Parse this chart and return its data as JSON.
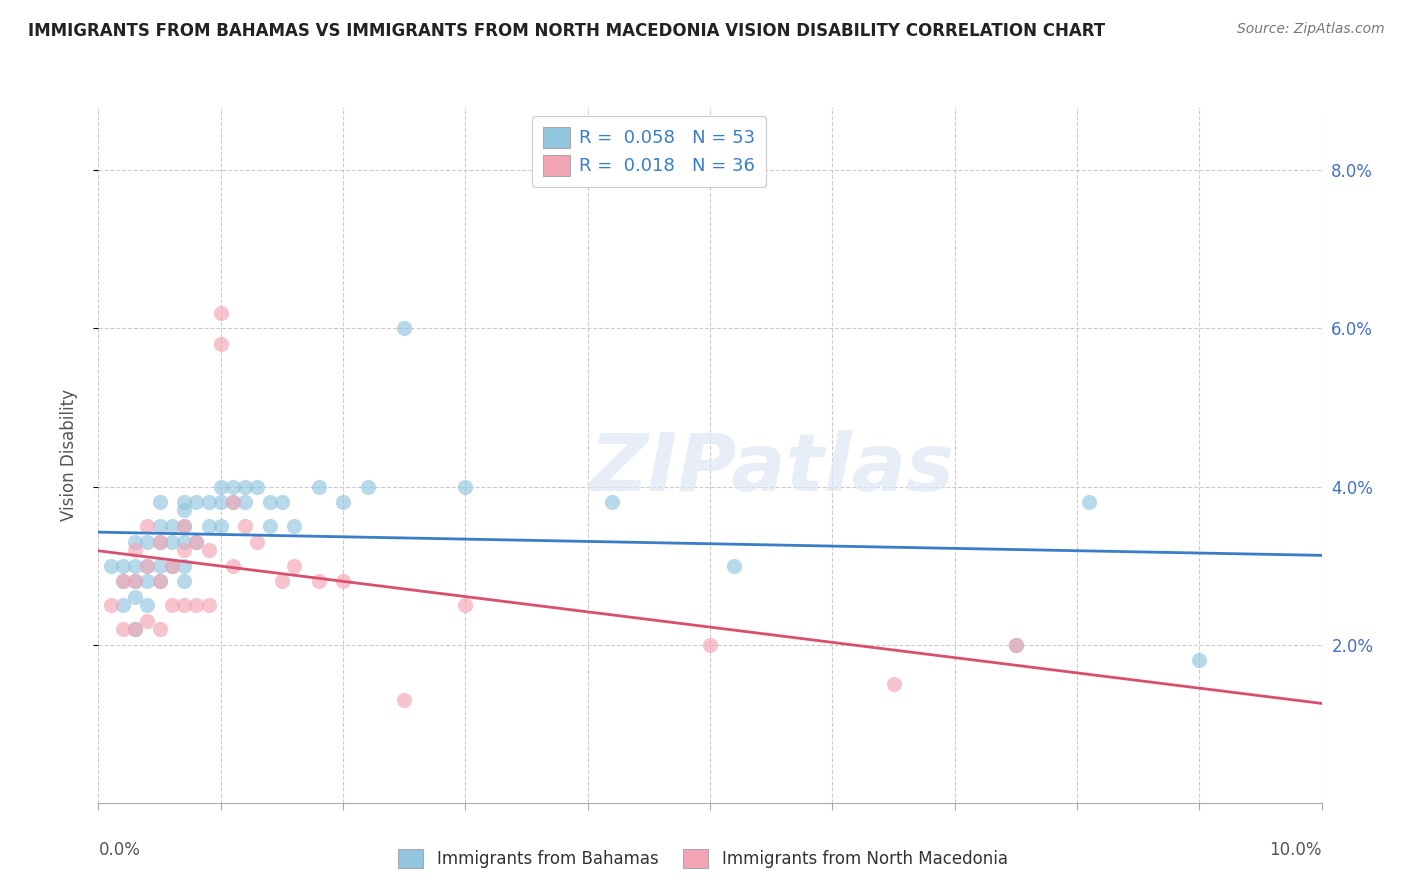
{
  "title": "IMMIGRANTS FROM BAHAMAS VS IMMIGRANTS FROM NORTH MACEDONIA VISION DISABILITY CORRELATION CHART",
  "source": "Source: ZipAtlas.com",
  "ylabel": "Vision Disability",
  "xlim": [
    0.0,
    0.1
  ],
  "ylim": [
    0.0,
    0.088
  ],
  "yticks": [
    0.02,
    0.04,
    0.06,
    0.08
  ],
  "ytick_labels": [
    "2.0%",
    "4.0%",
    "6.0%",
    "8.0%"
  ],
  "series1_label": "Immigrants from Bahamas",
  "series2_label": "Immigrants from North Macedonia",
  "series1_R": "0.058",
  "series1_N": "53",
  "series2_R": "0.018",
  "series2_N": "36",
  "series1_color": "#92c5de",
  "series2_color": "#f4a5b5",
  "series1_line_color": "#3a7dc9",
  "series2_line_color": "#d94f6e",
  "watermark": "ZIPatlas",
  "series1_x": [
    0.001,
    0.002,
    0.002,
    0.002,
    0.003,
    0.003,
    0.003,
    0.003,
    0.003,
    0.004,
    0.004,
    0.004,
    0.004,
    0.005,
    0.005,
    0.005,
    0.005,
    0.005,
    0.006,
    0.006,
    0.006,
    0.007,
    0.007,
    0.007,
    0.007,
    0.007,
    0.007,
    0.008,
    0.008,
    0.009,
    0.009,
    0.01,
    0.01,
    0.01,
    0.011,
    0.011,
    0.012,
    0.012,
    0.013,
    0.014,
    0.014,
    0.015,
    0.016,
    0.018,
    0.02,
    0.022,
    0.025,
    0.03,
    0.042,
    0.052,
    0.075,
    0.081,
    0.09
  ],
  "series1_y": [
    0.03,
    0.03,
    0.028,
    0.025,
    0.033,
    0.03,
    0.028,
    0.026,
    0.022,
    0.033,
    0.03,
    0.028,
    0.025,
    0.038,
    0.035,
    0.033,
    0.03,
    0.028,
    0.035,
    0.033,
    0.03,
    0.038,
    0.037,
    0.035,
    0.033,
    0.03,
    0.028,
    0.038,
    0.033,
    0.038,
    0.035,
    0.04,
    0.038,
    0.035,
    0.04,
    0.038,
    0.04,
    0.038,
    0.04,
    0.038,
    0.035,
    0.038,
    0.035,
    0.04,
    0.038,
    0.04,
    0.06,
    0.04,
    0.038,
    0.03,
    0.02,
    0.038,
    0.018
  ],
  "series2_x": [
    0.001,
    0.002,
    0.002,
    0.003,
    0.003,
    0.003,
    0.004,
    0.004,
    0.004,
    0.005,
    0.005,
    0.005,
    0.006,
    0.006,
    0.007,
    0.007,
    0.007,
    0.008,
    0.008,
    0.009,
    0.009,
    0.01,
    0.01,
    0.011,
    0.011,
    0.012,
    0.013,
    0.015,
    0.016,
    0.018,
    0.02,
    0.025,
    0.03,
    0.05,
    0.065,
    0.075
  ],
  "series2_y": [
    0.025,
    0.028,
    0.022,
    0.032,
    0.028,
    0.022,
    0.035,
    0.03,
    0.023,
    0.033,
    0.028,
    0.022,
    0.03,
    0.025,
    0.035,
    0.032,
    0.025,
    0.033,
    0.025,
    0.032,
    0.025,
    0.062,
    0.058,
    0.038,
    0.03,
    0.035,
    0.033,
    0.028,
    0.03,
    0.028,
    0.028,
    0.013,
    0.025,
    0.02,
    0.015,
    0.02
  ]
}
